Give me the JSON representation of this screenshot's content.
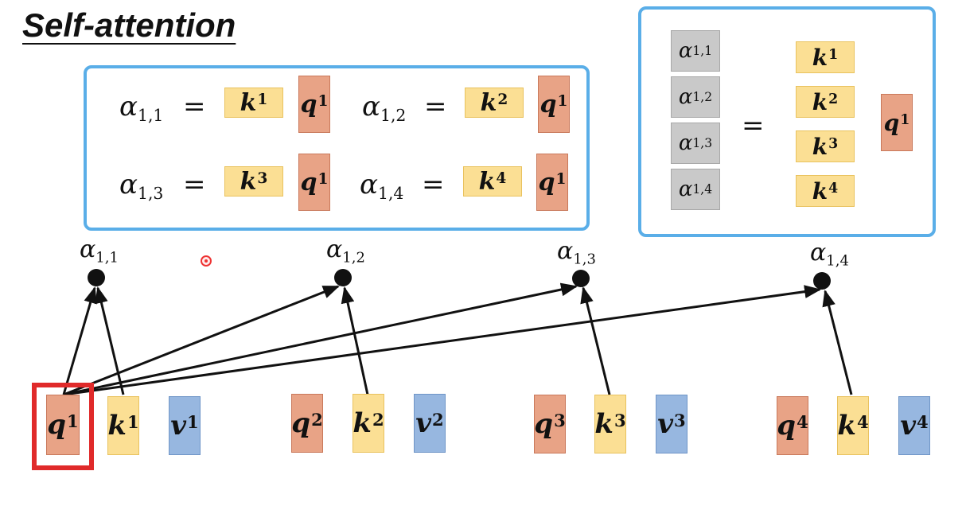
{
  "title": "Self-attention",
  "alpha_sym": "α",
  "equals": "=",
  "top_panel": {
    "rows": [
      [
        {
          "alpha_sub": "1,1",
          "key": "k",
          "key_sup": "1",
          "query": "q",
          "query_sup": "1"
        },
        {
          "alpha_sub": "1,2",
          "key": "k",
          "key_sup": "2",
          "query": "q",
          "query_sup": "1"
        }
      ],
      [
        {
          "alpha_sub": "1,3",
          "key": "k",
          "key_sup": "3",
          "query": "q",
          "query_sup": "1"
        },
        {
          "alpha_sub": "1,4",
          "key": "k",
          "key_sup": "4",
          "query": "q",
          "query_sup": "1"
        }
      ]
    ]
  },
  "right_panel": {
    "alphas": [
      "1,1",
      "1,2",
      "1,3",
      "1,4"
    ],
    "keys": [
      {
        "base": "k",
        "sup": "1"
      },
      {
        "base": "k",
        "sup": "2"
      },
      {
        "base": "k",
        "sup": "3"
      },
      {
        "base": "k",
        "sup": "4"
      }
    ],
    "query": {
      "base": "q",
      "sup": "1"
    }
  },
  "scores": [
    {
      "label_sub": "1,1"
    },
    {
      "label_sub": "1,2"
    },
    {
      "label_sub": "1,3"
    },
    {
      "label_sub": "1,4"
    }
  ],
  "vector_groups": [
    {
      "q": {
        "base": "q",
        "sup": "1"
      },
      "k": {
        "base": "k",
        "sup": "1"
      },
      "v": {
        "base": "v",
        "sup": "1"
      }
    },
    {
      "q": {
        "base": "q",
        "sup": "2"
      },
      "k": {
        "base": "k",
        "sup": "2"
      },
      "v": {
        "base": "v",
        "sup": "2"
      }
    },
    {
      "q": {
        "base": "q",
        "sup": "3"
      },
      "k": {
        "base": "k",
        "sup": "3"
      },
      "v": {
        "base": "v",
        "sup": "3"
      }
    },
    {
      "q": {
        "base": "q",
        "sup": "4"
      },
      "k": {
        "base": "k",
        "sup": "4"
      },
      "v": {
        "base": "v",
        "sup": "4"
      }
    }
  ],
  "colors": {
    "query": "#e8a386",
    "key": "#fbdf94",
    "value": "#97b7e0",
    "score": "#c9c9c9",
    "panel_border": "#5aaee8",
    "highlight": "#e02a2a"
  }
}
